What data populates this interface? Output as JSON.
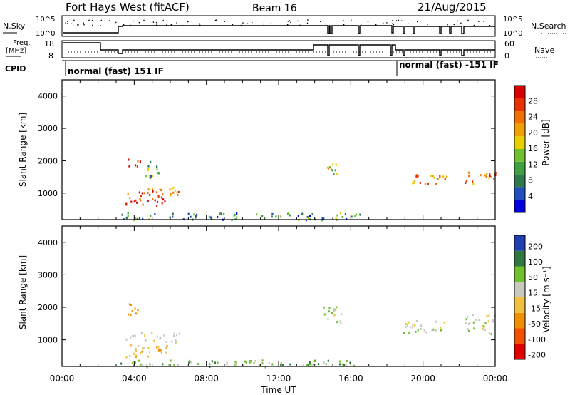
{
  "header": {
    "site": "Fort Hays West (fitACF)",
    "beam": "Beam 16",
    "date": "21/Aug/2015"
  },
  "status_panels": {
    "nsky_label": "N.Sky",
    "nsearch_label": "N.Search",
    "nsky_ticks": [
      "10^5",
      "10^0"
    ],
    "freq_label_1": "Freq.",
    "freq_label_2": "[MHz]",
    "freq_ticks": [
      "18",
      "8"
    ],
    "nave_label": "Nave",
    "nave_ticks": [
      "60",
      "0"
    ],
    "cpid_label": "CPID",
    "cpid_modes": [
      "normal (fast) 151 IF",
      "normal (fast) -151 IF"
    ]
  },
  "chart_data": [
    {
      "type": "heatmap",
      "name": "power",
      "ylabel": "Slant Range [km]",
      "ylim": [
        180,
        4500
      ],
      "yticks": [
        "4000",
        "3000",
        "2000",
        "1000"
      ],
      "colorbar": {
        "label": "Power [dB]",
        "ticks": [
          "28",
          "24",
          "20",
          "16",
          "12",
          "8",
          "4"
        ],
        "colors": [
          "#0000e0",
          "#2050c0",
          "#307850",
          "#40a040",
          "#70c030",
          "#e8d000",
          "#f0a000",
          "#f07000",
          "#e83000",
          "#d80000"
        ]
      },
      "echo_regions": [
        {
          "t": [
            3.5,
            4.3
          ],
          "r": [
            1800,
            2100
          ],
          "level": 0.85
        },
        {
          "t": [
            3.6,
            6.5
          ],
          "r": [
            900,
            1250
          ],
          "level": 0.75
        },
        {
          "t": [
            3.5,
            6.0
          ],
          "r": [
            600,
            900
          ],
          "level": 0.85
        },
        {
          "t": [
            4.5,
            5.5
          ],
          "r": [
            1500,
            2000
          ],
          "level": 0.35
        },
        {
          "t": [
            14.4,
            15.2
          ],
          "r": [
            1600,
            2100
          ],
          "level": 0.55
        },
        {
          "t": [
            18.9,
            21.3
          ],
          "r": [
            1300,
            1600
          ],
          "level": 0.7
        },
        {
          "t": [
            22.3,
            24.0
          ],
          "r": [
            1300,
            1750
          ],
          "level": 0.75
        },
        {
          "t": [
            3.2,
            16.5
          ],
          "r": [
            190,
            420
          ],
          "level": 0.3
        }
      ]
    },
    {
      "type": "heatmap",
      "name": "velocity",
      "ylabel": "Slant Range [km]",
      "xlabel": "Time UT",
      "xticks": [
        "00:00",
        "04:00",
        "08:00",
        "12:00",
        "16:00",
        "20:00",
        "00:00"
      ],
      "ylim": [
        180,
        4500
      ],
      "yticks": [
        "4000",
        "3000",
        "2000",
        "1000"
      ],
      "colorbar": {
        "label": "Velocity [m s⁻¹]",
        "ticks": [
          "200",
          "100",
          "50",
          "15",
          "-15",
          "-50",
          "-100",
          "-200"
        ],
        "colors": [
          "#2040b0",
          "#307840",
          "#70c030",
          "#c8c8c0",
          "#f0c040",
          "#f09000",
          "#f05000",
          "#e00000"
        ]
      },
      "echo_regions": [
        {
          "t": [
            3.5,
            4.3
          ],
          "r": [
            1750,
            2150
          ],
          "level": "-50"
        },
        {
          "t": [
            3.5,
            6.5
          ],
          "r": [
            950,
            1250
          ],
          "level": "15"
        },
        {
          "t": [
            3.5,
            6.0
          ],
          "r": [
            500,
            900
          ],
          "level": "-15"
        },
        {
          "t": [
            14.4,
            15.5
          ],
          "r": [
            1500,
            2100
          ],
          "level": "15"
        },
        {
          "t": [
            18.9,
            21.3
          ],
          "r": [
            1250,
            1650
          ],
          "level": "15"
        },
        {
          "t": [
            22.3,
            24.0
          ],
          "r": [
            1200,
            1800
          ],
          "level": "15"
        },
        {
          "t": [
            3.2,
            16.5
          ],
          "r": [
            190,
            400
          ],
          "level": "50"
        }
      ]
    }
  ]
}
